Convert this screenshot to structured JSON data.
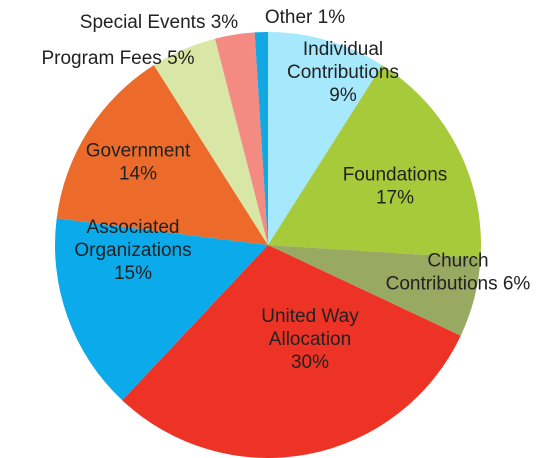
{
  "chart_data": {
    "type": "pie",
    "title": "",
    "slices": [
      {
        "name": "Individual Contributions",
        "value": 9,
        "label_lines": [
          "Individual",
          "Contributions",
          "9%"
        ],
        "color": "#A6E8FC"
      },
      {
        "name": "Foundations",
        "value": 17,
        "label_lines": [
          "Foundations",
          "17%"
        ],
        "color": "#A6CA3A"
      },
      {
        "name": "Church Contributions",
        "value": 6,
        "label_lines": [
          "Church",
          "Contributions 6%"
        ],
        "color": "#98AA62"
      },
      {
        "name": "United Way Allocation",
        "value": 30,
        "label_lines": [
          "United Way",
          "Allocation",
          "30%"
        ],
        "color": "#EC3326"
      },
      {
        "name": "Associated Organizations",
        "value": 15,
        "label_lines": [
          "Associated",
          "Organizations",
          "15%"
        ],
        "color": "#0BAAEA"
      },
      {
        "name": "Government",
        "value": 14,
        "label_lines": [
          "Government",
          "14%"
        ],
        "color": "#EC6B2A"
      },
      {
        "name": "Program Fees",
        "value": 5,
        "label_lines": [
          "Program Fees 5%"
        ],
        "color": "#D9E7A6"
      },
      {
        "name": "Special Events",
        "value": 3,
        "label_lines": [
          "Special Events 3%"
        ],
        "color": "#F48B83"
      },
      {
        "name": "Other",
        "value": 1,
        "label_lines": [
          "Other 1%"
        ],
        "color": "#12A8E4"
      }
    ]
  }
}
